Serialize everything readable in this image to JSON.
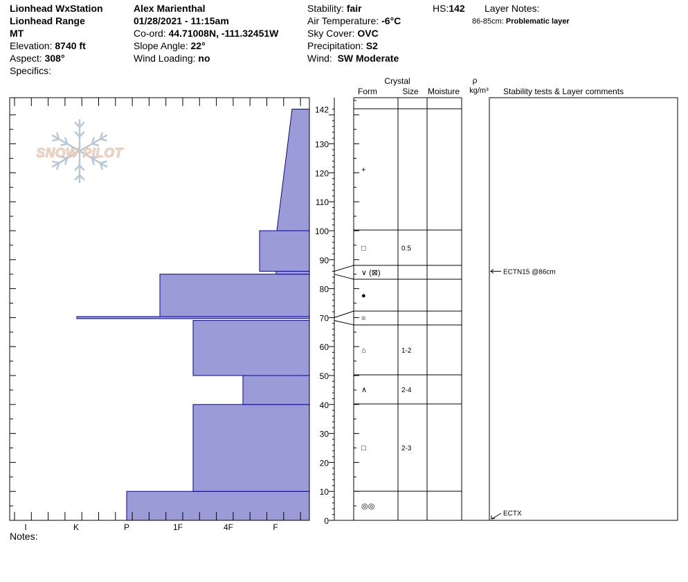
{
  "site": {
    "name": "Lionhead WxStation",
    "range": "Lionhead Range",
    "state": "MT",
    "elevation_label": "Elevation:",
    "elevation": "8740 ft",
    "aspect_label": "Aspect:",
    "aspect": "308°",
    "specifics_label": "Specifics:"
  },
  "observer": {
    "name": "Alex Marienthal",
    "datetime": "01/28/2021 - 11:15am",
    "coord_label": "Co-ord:",
    "coord": "44.71008N, -111.32451W",
    "slope_label": "Slope Angle:",
    "slope": "22°",
    "wind_loading_label": "Wind Loading:",
    "wind_loading": "no"
  },
  "conditions": {
    "stability_label": "Stability:",
    "stability": "fair",
    "air_temp_label": "Air Temperature:",
    "air_temp": "-6°C",
    "sky_label": "Sky Cover:",
    "sky": "OVC",
    "precip_label": "Precipitation:",
    "precip": "S2",
    "wind_label": "Wind:",
    "wind": "SW Moderate"
  },
  "hs": {
    "label": "HS:",
    "value": "142"
  },
  "layer_notes": {
    "label": "Layer Notes:",
    "range": "86-85cm:",
    "text": "Problematic layer"
  },
  "notes_label": "Notes:",
  "columns": {
    "crystal": "Crystal",
    "form": "Form",
    "size": "Size",
    "moisture": "Moisture",
    "rho": "ρ",
    "density_unit": "kg/m³",
    "comments": "Stability tests & Layer comments"
  },
  "logo_text": "SNOW PILOT",
  "colors": {
    "hardness_fill": "#9b9bd8",
    "hardness_edge": "#0000aa",
    "arrow": "#000000"
  },
  "chart_data": {
    "type": "snow_profile",
    "hs": 142,
    "y_range": [
      0,
      142
    ],
    "y_ticks": [
      "0",
      "10",
      "20",
      "30",
      "40",
      "50",
      "60",
      "70",
      "80",
      "90",
      "100",
      "110",
      "120",
      "130",
      "142"
    ],
    "hardness_axis": [
      "I",
      "K",
      "P",
      "1F",
      "4F",
      "F"
    ],
    "hardness_profile": [
      {
        "bottom": 0,
        "top": 10,
        "hardness": "P"
      },
      {
        "bottom": 10,
        "top": 40,
        "hardness": "4F"
      },
      {
        "bottom": 40,
        "top": 50,
        "hardness": "4F-F"
      },
      {
        "bottom": 50,
        "top": 69,
        "hardness": "4F"
      },
      {
        "bottom": 69,
        "top": 70,
        "hardness": "K-P"
      },
      {
        "bottom": 70,
        "top": 85,
        "hardness": "1F-4F"
      },
      {
        "bottom": 85,
        "top": 86,
        "hardness": "F"
      },
      {
        "bottom": 86,
        "top": 100,
        "hardness": "4F-F"
      },
      {
        "bottom": 100,
        "top": 142,
        "hardness": "F to F-"
      }
    ],
    "layers": [
      {
        "top": 142,
        "bottom": 100,
        "form": "+",
        "size": ""
      },
      {
        "top": 100,
        "bottom": 87,
        "form": "□",
        "size": "0.5"
      },
      {
        "top": 87,
        "bottom": 83,
        "form": "∨ (⊠)",
        "size": ""
      },
      {
        "top": 83,
        "bottom": 72,
        "form": "●",
        "size": ""
      },
      {
        "top": 72,
        "bottom": 67,
        "form": "=",
        "size": ""
      },
      {
        "top": 67,
        "bottom": 50,
        "form": "⌂",
        "size": "1-2"
      },
      {
        "top": 50,
        "bottom": 40,
        "form": "∧",
        "size": "2-4"
      },
      {
        "top": 40,
        "bottom": 10,
        "form": "□",
        "size": "2-3"
      },
      {
        "top": 10,
        "bottom": 0,
        "form": "◎◎",
        "size": ""
      }
    ],
    "highlighted_layers": [
      86,
      70
    ],
    "stability_tests": [
      {
        "label": "ECTN15 @86cm",
        "depth": 86
      },
      {
        "label": "ECTX",
        "depth": 0
      }
    ]
  }
}
